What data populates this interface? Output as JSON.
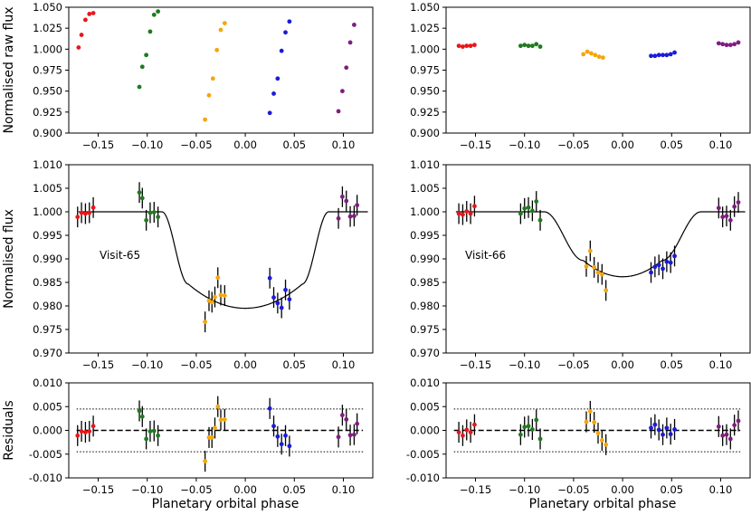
{
  "chart_data": {
    "type": "scatter",
    "xlabel": "Planetary orbital phase",
    "colors": {
      "red": "#e8161b",
      "green": "#1f7a1f",
      "orange": "#f5a60a",
      "blue": "#1b1bd9",
      "purple": "#7f1d7f"
    },
    "ylabels": {
      "raw": "Normalised raw flux",
      "norm": "Normalised flux",
      "resid": "Residuals"
    },
    "xlim": [
      -0.18,
      0.13
    ],
    "xticks": [
      -0.15,
      -0.1,
      -0.05,
      0.0,
      0.05,
      0.1
    ],
    "xtick_labels": [
      "−0.15",
      "−0.10",
      "−0.05",
      "0.00",
      "0.05",
      "0.10"
    ],
    "rows": {
      "raw": {
        "ylim": [
          0.9,
          1.05
        ],
        "yticks": [
          0.9,
          0.925,
          0.95,
          0.975,
          1.0,
          1.025,
          1.05
        ],
        "ytick_labels": [
          "0.900",
          "0.925",
          "0.950",
          "0.975",
          "1.000",
          "1.025",
          "1.050"
        ]
      },
      "norm": {
        "ylim": [
          0.97,
          1.01
        ],
        "yticks": [
          0.97,
          0.975,
          0.98,
          0.985,
          0.99,
          0.995,
          1.0,
          1.005,
          1.01
        ],
        "ytick_labels": [
          "0.970",
          "0.975",
          "0.980",
          "0.985",
          "0.990",
          "0.995",
          "1.000",
          "1.005",
          "1.010"
        ]
      },
      "resid": {
        "ylim": [
          -0.01,
          0.01
        ],
        "yticks": [
          -0.01,
          -0.005,
          0.0,
          0.005,
          0.01
        ],
        "ytick_labels": [
          "-0.010",
          "-0.005",
          "0.000",
          "0.005",
          "0.010"
        ]
      }
    },
    "panels": [
      {
        "label": "Visit-65",
        "raw": [
          {
            "color": "red",
            "x": [
              -0.17,
              -0.167,
              -0.163,
              -0.159,
              -0.155
            ],
            "y": [
              1.002,
              1.017,
              1.035,
              1.042,
              1.043
            ]
          },
          {
            "color": "green",
            "x": [
              -0.108,
              -0.105,
              -0.101,
              -0.097,
              -0.093,
              -0.089
            ],
            "y": [
              0.955,
              0.979,
              0.993,
              1.021,
              1.041,
              1.045
            ]
          },
          {
            "color": "orange",
            "x": [
              -0.041,
              -0.037,
              -0.033,
              -0.029,
              -0.025,
              -0.021
            ],
            "y": [
              0.916,
              0.945,
              0.965,
              0.999,
              1.023,
              1.031
            ]
          },
          {
            "color": "blue",
            "x": [
              0.025,
              0.029,
              0.033,
              0.037,
              0.041,
              0.045
            ],
            "y": [
              0.924,
              0.947,
              0.965,
              0.998,
              1.02,
              1.033
            ]
          },
          {
            "color": "purple",
            "x": [
              0.095,
              0.099,
              0.103,
              0.107,
              0.111
            ],
            "y": [
              0.926,
              0.95,
              0.978,
              1.008,
              1.029
            ]
          }
        ],
        "norm": [
          {
            "color": "red",
            "x": [
              -0.171,
              -0.167,
              -0.163,
              -0.159,
              -0.155
            ],
            "y": [
              0.9989,
              0.9998,
              0.9996,
              0.9998,
              1.0009
            ],
            "err": [
              0.0022,
              0.0022,
              0.0022,
              0.0022,
              0.0022
            ]
          },
          {
            "color": "green",
            "x": [
              -0.108,
              -0.105,
              -0.101,
              -0.097,
              -0.093,
              -0.089
            ],
            "y": [
              1.0041,
              1.0029,
              0.9982,
              0.9998,
              0.9999,
              0.9989
            ],
            "err": [
              0.0022,
              0.0022,
              0.0022,
              0.0022,
              0.0022,
              0.0022
            ]
          },
          {
            "color": "orange",
            "x": [
              -0.041,
              -0.037,
              -0.034,
              -0.031,
              -0.028,
              -0.025,
              -0.021
            ],
            "y": [
              0.9766,
              0.9811,
              0.9808,
              0.9819,
              0.986,
              0.9823,
              0.9822
            ],
            "err": [
              0.0022,
              0.0022,
              0.0022,
              0.0022,
              0.0022,
              0.0022,
              0.0022
            ]
          },
          {
            "color": "blue",
            "x": [
              0.025,
              0.029,
              0.033,
              0.037,
              0.041,
              0.045
            ],
            "y": [
              0.9859,
              0.9818,
              0.9806,
              0.9796,
              0.9834,
              0.9814
            ],
            "err": [
              0.0022,
              0.0022,
              0.0022,
              0.0022,
              0.0022,
              0.0022
            ]
          },
          {
            "color": "purple",
            "x": [
              0.095,
              0.099,
              0.103,
              0.107,
              0.111,
              0.114
            ],
            "y": [
              0.9986,
              1.0032,
              1.0023,
              0.999,
              0.9991,
              1.0014
            ],
            "err": [
              0.0022,
              0.0022,
              0.0022,
              0.0022,
              0.0022,
              0.0022
            ]
          }
        ],
        "model": {
          "depth": 0.0205,
          "t1": 0.085,
          "t2": 0.058
        },
        "resid": [
          {
            "color": "red",
            "x": [
              -0.171,
              -0.167,
              -0.163,
              -0.159,
              -0.155
            ],
            "y": [
              -0.0011,
              -0.0002,
              -0.0004,
              -0.0002,
              0.0009
            ],
            "err": [
              0.0022,
              0.0022,
              0.0022,
              0.0022,
              0.0022
            ]
          },
          {
            "color": "green",
            "x": [
              -0.108,
              -0.105,
              -0.101,
              -0.097,
              -0.093,
              -0.089
            ],
            "y": [
              0.0041,
              0.0029,
              -0.0018,
              -0.0002,
              -0.0001,
              -0.0011
            ],
            "err": [
              0.0022,
              0.0022,
              0.0022,
              0.0022,
              0.0022,
              0.0022
            ]
          },
          {
            "color": "orange",
            "x": [
              -0.041,
              -0.037,
              -0.034,
              -0.031,
              -0.028,
              -0.025,
              -0.021
            ],
            "y": [
              -0.0065,
              -0.0015,
              -0.0015,
              0.0005,
              0.005,
              0.0022,
              0.0023
            ],
            "err": [
              0.0022,
              0.0022,
              0.0022,
              0.0022,
              0.0022,
              0.0022,
              0.0022
            ]
          },
          {
            "color": "blue",
            "x": [
              0.025,
              0.029,
              0.033,
              0.037,
              0.041,
              0.045
            ],
            "y": [
              0.0046,
              0.0009,
              -0.0013,
              -0.0029,
              -0.0011,
              -0.0033
            ],
            "err": [
              0.0022,
              0.0022,
              0.0022,
              0.0022,
              0.0022,
              0.0022
            ]
          },
          {
            "color": "purple",
            "x": [
              0.095,
              0.099,
              0.103,
              0.107,
              0.111,
              0.114
            ],
            "y": [
              -0.0014,
              0.0032,
              0.0023,
              -0.001,
              -0.0009,
              0.0014
            ],
            "err": [
              0.0022,
              0.0022,
              0.0022,
              0.0022,
              0.0022,
              0.0022
            ]
          }
        ]
      },
      {
        "label": "Visit-66",
        "raw": [
          {
            "color": "red",
            "x": [
              -0.167,
              -0.163,
              -0.159,
              -0.155,
              -0.151
            ],
            "y": [
              1.004,
              1.003,
              1.004,
              1.004,
              1.005
            ]
          },
          {
            "color": "green",
            "x": [
              -0.104,
              -0.1,
              -0.096,
              -0.092,
              -0.088,
              -0.084
            ],
            "y": [
              1.004,
              1.005,
              1.004,
              1.004,
              1.006,
              1.003
            ]
          },
          {
            "color": "orange",
            "x": [
              -0.04,
              -0.036,
              -0.032,
              -0.028,
              -0.024,
              -0.02
            ],
            "y": [
              0.994,
              0.997,
              0.995,
              0.993,
              0.991,
              0.99
            ]
          },
          {
            "color": "blue",
            "x": [
              0.029,
              0.033,
              0.037,
              0.041,
              0.045,
              0.049,
              0.053
            ],
            "y": [
              0.992,
              0.992,
              0.993,
              0.993,
              0.993,
              0.994,
              0.996
            ]
          },
          {
            "color": "purple",
            "x": [
              0.098,
              0.102,
              0.106,
              0.11,
              0.114,
              0.118
            ],
            "y": [
              1.007,
              1.006,
              1.005,
              1.005,
              1.006,
              1.008
            ]
          }
        ],
        "norm": [
          {
            "color": "red",
            "x": [
              -0.167,
              -0.163,
              -0.159,
              -0.155,
              -0.151
            ],
            "y": [
              0.9996,
              0.9994,
              1.0001,
              0.9996,
              1.0012
            ],
            "err": [
              0.0022,
              0.0022,
              0.0022,
              0.0022,
              0.0022
            ]
          },
          {
            "color": "green",
            "x": [
              -0.104,
              -0.1,
              -0.096,
              -0.092,
              -0.088,
              -0.084
            ],
            "y": [
              0.9996,
              1.0007,
              1.0009,
              1.0002,
              1.0022,
              0.9982
            ],
            "err": [
              0.0022,
              0.0022,
              0.0022,
              0.0022,
              0.0022,
              0.0022
            ]
          },
          {
            "color": "orange",
            "x": [
              -0.037,
              -0.033,
              -0.029,
              -0.025,
              -0.021,
              -0.017
            ],
            "y": [
              0.9884,
              0.9917,
              0.9882,
              0.9871,
              0.9867,
              0.9833
            ],
            "err": [
              0.0022,
              0.0022,
              0.0022,
              0.0022,
              0.0022,
              0.0022
            ]
          },
          {
            "color": "blue",
            "x": [
              0.029,
              0.033,
              0.037,
              0.041,
              0.045,
              0.049,
              0.053
            ],
            "y": [
              0.9871,
              0.9883,
              0.9887,
              0.9879,
              0.9894,
              0.9892,
              0.9906
            ],
            "err": [
              0.0022,
              0.0022,
              0.0022,
              0.0022,
              0.0022,
              0.0022,
              0.0022
            ]
          },
          {
            "color": "purple",
            "x": [
              0.098,
              0.102,
              0.106,
              0.11,
              0.114,
              0.118
            ],
            "y": [
              1.0008,
              0.9989,
              0.9991,
              0.9982,
              1.0011,
              1.002
            ],
            "err": [
              0.0022,
              0.0022,
              0.0022,
              0.0022,
              0.0022,
              0.0022
            ]
          }
        ],
        "model": {
          "depth": 0.0138,
          "t1": 0.08,
          "t2": 0.04
        },
        "resid": [
          {
            "color": "red",
            "x": [
              -0.167,
              -0.163,
              -0.159,
              -0.155,
              -0.151
            ],
            "y": [
              -0.0004,
              -0.0011,
              0.0001,
              -0.0004,
              0.0012
            ],
            "err": [
              0.0022,
              0.0022,
              0.0022,
              0.0022,
              0.0022
            ]
          },
          {
            "color": "green",
            "x": [
              -0.104,
              -0.1,
              -0.096,
              -0.092,
              -0.088,
              -0.084
            ],
            "y": [
              -0.0009,
              0.0007,
              0.0009,
              0.0002,
              0.0022,
              -0.0018
            ],
            "err": [
              0.0022,
              0.0022,
              0.0022,
              0.0022,
              0.0022,
              0.0022
            ]
          },
          {
            "color": "orange",
            "x": [
              -0.037,
              -0.033,
              -0.029,
              -0.025,
              -0.021,
              -0.017
            ],
            "y": [
              0.0018,
              0.004,
              0.0017,
              -0.0006,
              -0.0021,
              -0.003
            ],
            "err": [
              0.0022,
              0.0022,
              0.0022,
              0.0022,
              0.0022,
              0.0022
            ]
          },
          {
            "color": "blue",
            "x": [
              0.029,
              0.033,
              0.037,
              0.041,
              0.045,
              0.049,
              0.053
            ],
            "y": [
              0.0005,
              0.0012,
              0.0001,
              -0.0009,
              0.0005,
              -0.0008,
              0.0002
            ],
            "err": [
              0.0022,
              0.0022,
              0.0022,
              0.0022,
              0.0022,
              0.0022,
              0.0022
            ]
          },
          {
            "color": "purple",
            "x": [
              0.098,
              0.102,
              0.106,
              0.11,
              0.114,
              0.118
            ],
            "y": [
              0.0008,
              -0.0011,
              -0.0009,
              -0.0018,
              0.0011,
              0.002
            ],
            "err": [
              0.0022,
              0.0022,
              0.0022,
              0.0022,
              0.0022,
              0.0022
            ]
          }
        ]
      }
    ],
    "resid_band": 0.0045
  }
}
